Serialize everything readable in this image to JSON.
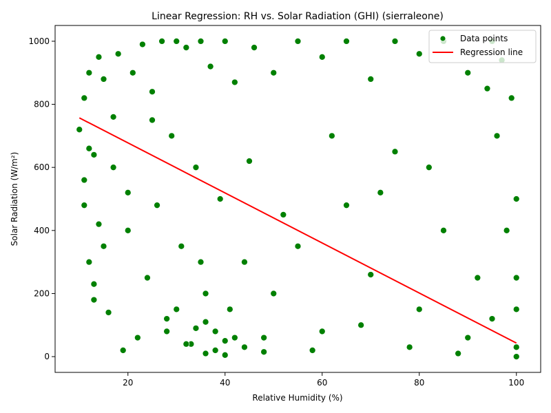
{
  "chart_data": {
    "type": "scatter",
    "title": "Linear Regression: RH vs. Solar Radiation (GHI) (sierraleone)",
    "xlabel": "Relative Humidity (%)",
    "ylabel": "Solar Radiation (W/m²)",
    "xlim": [
      5,
      105
    ],
    "ylim": [
      -50,
      1050
    ],
    "x_ticks": [
      20,
      40,
      60,
      80,
      100
    ],
    "y_ticks": [
      0,
      200,
      400,
      600,
      800,
      1000
    ],
    "grid": false,
    "legend_position": "top-right",
    "colors": {
      "points": "#008000",
      "point_edge": "#ffffff",
      "regression": "#ff0000"
    },
    "series": [
      {
        "name": "Data points",
        "kind": "scatter",
        "x": [
          10,
          11,
          11,
          12,
          12,
          13,
          13,
          14,
          15,
          16,
          17,
          18,
          19,
          20,
          21,
          22,
          23,
          24,
          25,
          26,
          27,
          28,
          29,
          30,
          31,
          32,
          33,
          34,
          35,
          36,
          37,
          38,
          39,
          40,
          41,
          42,
          44,
          46,
          48,
          50,
          52,
          55,
          58,
          60,
          62,
          65,
          68,
          70,
          72,
          75,
          78,
          80,
          82,
          85,
          88,
          90,
          92,
          94,
          95,
          96,
          97,
          98,
          99,
          100,
          100,
          100,
          100,
          14,
          12,
          11,
          13,
          15,
          17,
          20,
          25,
          30,
          35,
          40,
          45,
          50,
          55,
          60,
          65,
          70,
          75,
          80,
          85,
          90,
          95,
          100,
          28,
          32,
          36,
          38,
          42,
          34,
          44,
          48,
          36,
          40
        ],
        "y": [
          720,
          820,
          560,
          300,
          900,
          180,
          640,
          950,
          880,
          140,
          760,
          960,
          20,
          400,
          900,
          60,
          990,
          250,
          840,
          480,
          1000,
          120,
          700,
          1000,
          350,
          980,
          40,
          600,
          1000,
          200,
          920,
          80,
          500,
          1000,
          150,
          870,
          300,
          980,
          60,
          900,
          450,
          1000,
          20,
          950,
          700,
          1000,
          100,
          880,
          520,
          1000,
          30,
          960,
          600,
          1000,
          10,
          900,
          250,
          850,
          1000,
          700,
          940,
          400,
          820,
          0,
          150,
          500,
          250,
          420,
          660,
          480,
          230,
          350,
          600,
          520,
          750,
          150,
          300,
          50,
          620,
          200,
          350,
          80,
          480,
          260,
          650,
          150,
          400,
          60,
          120,
          30,
          80,
          40,
          110,
          20,
          60,
          90,
          30,
          15,
          10,
          5
        ]
      },
      {
        "name": "Regression line",
        "kind": "line",
        "x": [
          10,
          100
        ],
        "y": [
          757,
          43
        ]
      }
    ]
  }
}
